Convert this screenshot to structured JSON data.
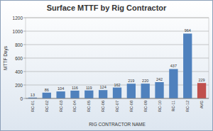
{
  "chart_data": {
    "type": "bar",
    "title": "Surface MTTF by Rig Contractor",
    "x_label": "RIG CONTRACTOR NAME",
    "y_label": "MTTF Days",
    "categories": [
      "RC-01",
      "RC-02",
      "RC-03",
      "RC-04",
      "RC-05",
      "RC-06",
      "RC-07",
      "RC-08",
      "RC-09",
      "RC-10",
      "RC-11",
      "RC-12",
      "AVG"
    ],
    "values": [
      13,
      86,
      104,
      116,
      119,
      124,
      162,
      219,
      220,
      242,
      437,
      964,
      229
    ],
    "colors": [
      "#4f81bd",
      "#4f81bd",
      "#4f81bd",
      "#4f81bd",
      "#4f81bd",
      "#4f81bd",
      "#4f81bd",
      "#4f81bd",
      "#4f81bd",
      "#4f81bd",
      "#4f81bd",
      "#4f81bd",
      "#c0504d"
    ],
    "ylim": [
      0,
      1200
    ],
    "yticks": [
      0,
      200,
      400,
      600,
      800,
      1000,
      1200
    ],
    "grid": true,
    "data_labels": true
  }
}
